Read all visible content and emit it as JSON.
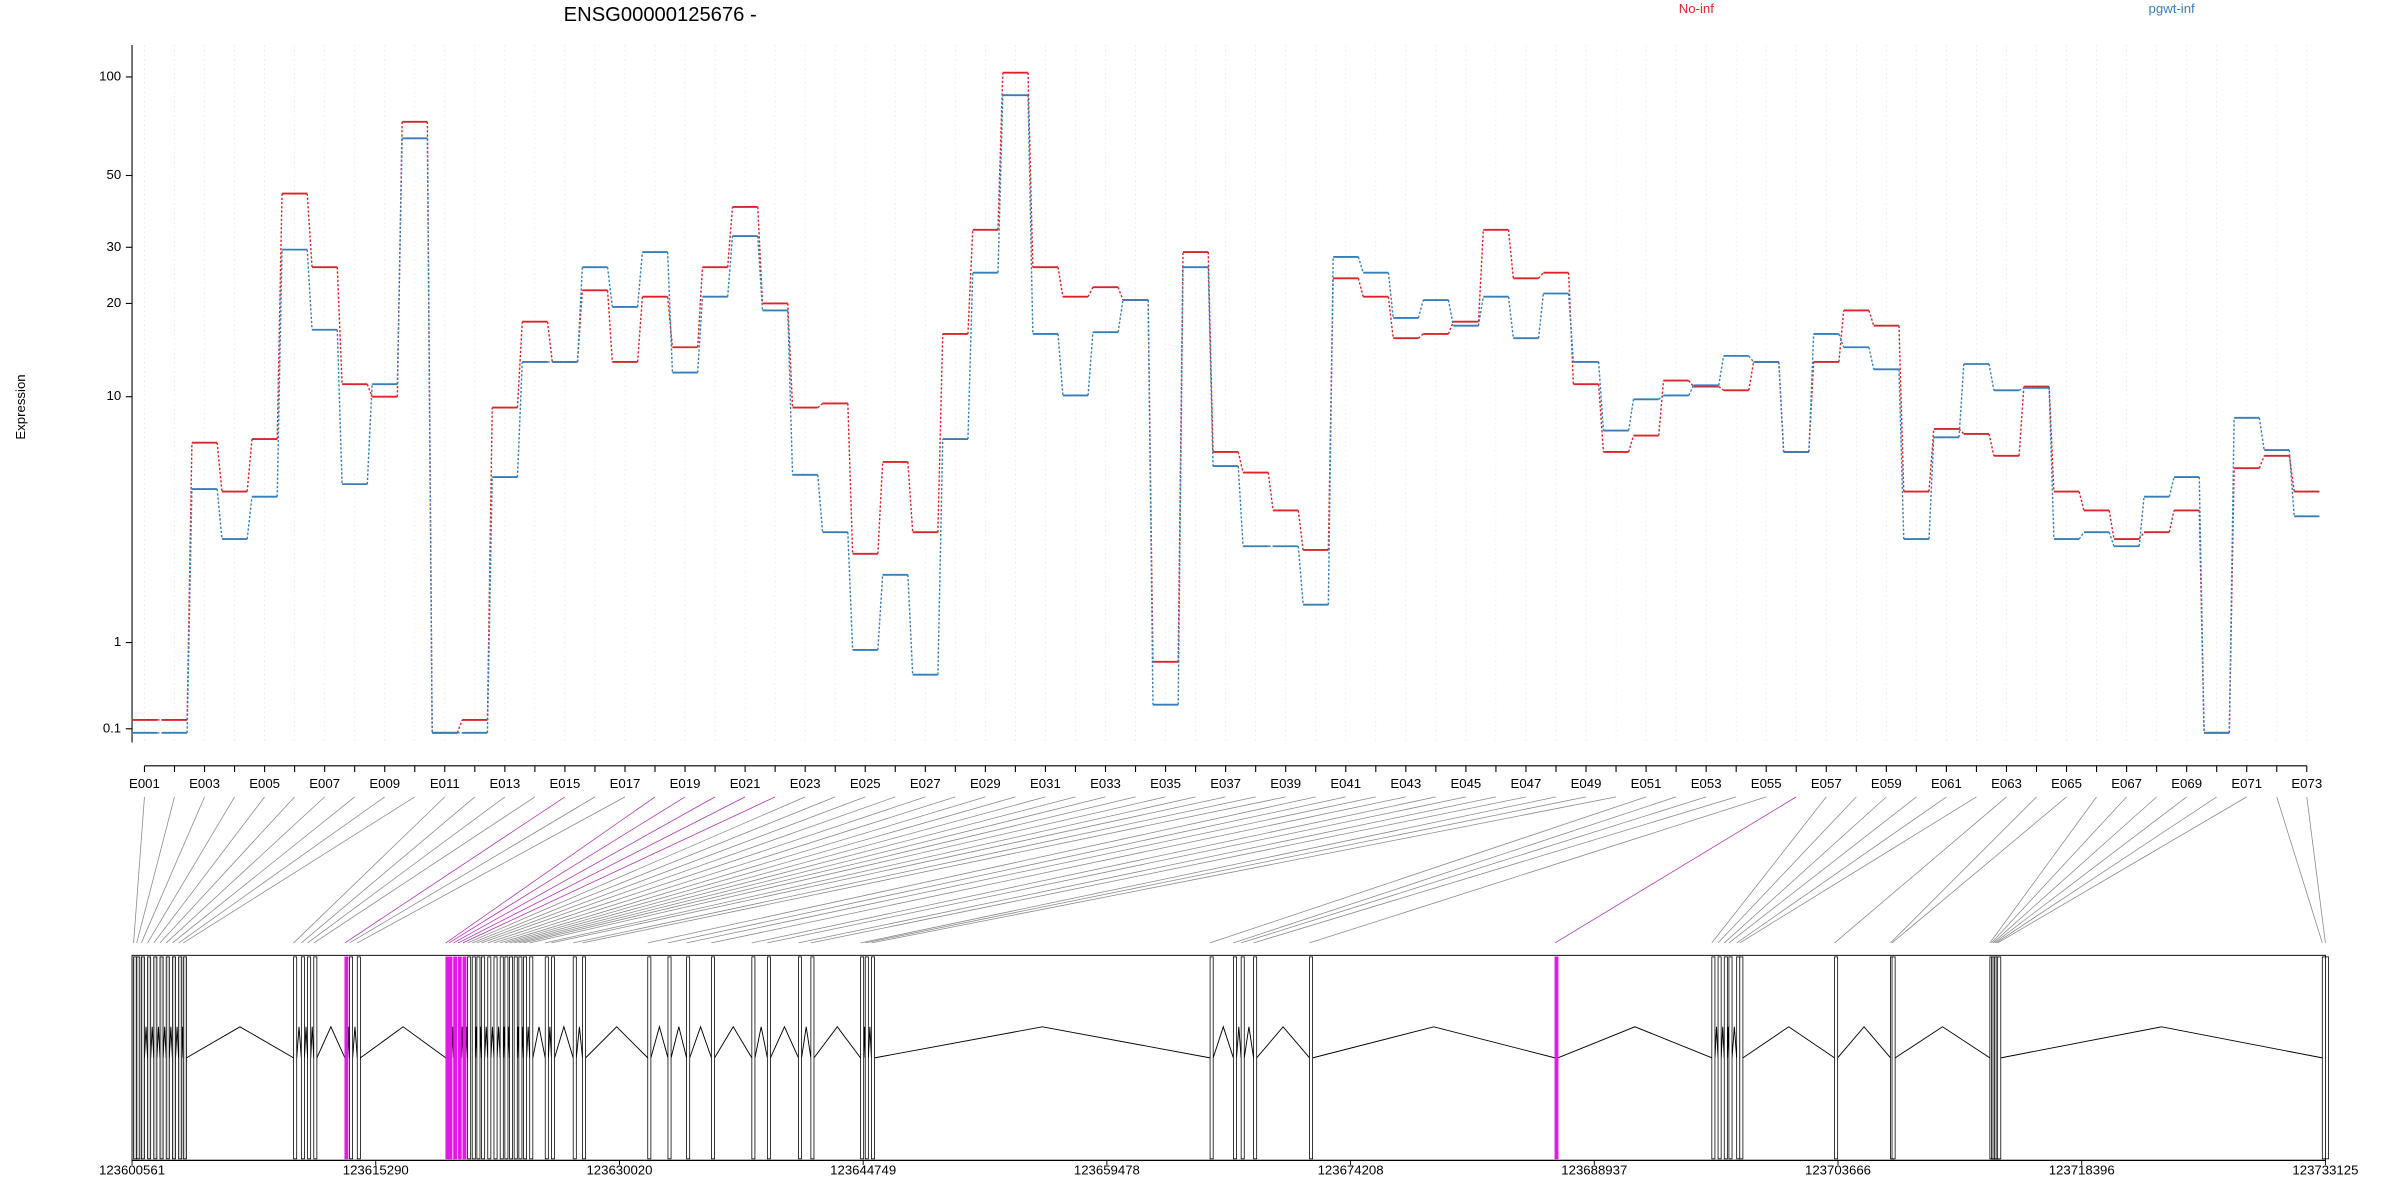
{
  "chart_data": [
    {
      "type": "line",
      "title": "ENSG00000125676 -",
      "ylabel": "Expression",
      "categories": [
        "E001",
        null,
        "E003",
        null,
        "E005",
        null,
        "E007",
        null,
        "E009",
        null,
        "E011",
        null,
        "E013",
        null,
        "E015",
        null,
        "E017",
        null,
        "E019",
        null,
        "E021",
        null,
        "E023",
        null,
        "E025",
        null,
        "E027",
        null,
        "E029",
        null,
        "E031",
        null,
        "E033",
        null,
        "E035",
        null,
        "E037",
        null,
        "E039",
        null,
        "E041",
        null,
        "E043",
        null,
        "E045",
        null,
        "E047",
        null,
        "E049",
        null,
        "E051",
        null,
        "E053",
        null,
        "E055",
        null,
        "E057",
        null,
        "E059",
        null,
        "E061",
        null,
        "E063",
        null,
        "E065",
        null,
        "E067",
        null,
        "E069",
        null,
        "E071",
        null,
        "E073"
      ],
      "series": [
        {
          "name": "No-inf",
          "color": "#d7262b",
          "values": [
            0.17,
            0.17,
            7,
            4.7,
            7.2,
            44,
            26,
            11,
            10,
            73,
            0.07,
            0.17,
            9.2,
            17.5,
            13,
            22,
            13,
            21,
            14.5,
            26,
            40,
            20,
            9.2,
            9.5,
            2.7,
            6,
            3.3,
            16,
            34,
            103,
            26,
            21,
            22.5,
            20.5,
            0.75,
            29,
            6.5,
            5.5,
            4,
            2.8,
            24,
            21,
            15.5,
            16,
            17.5,
            34,
            24,
            25,
            11,
            6.5,
            7.4,
            11.3,
            10.8,
            10.5,
            13,
            6.5,
            13,
            19,
            17,
            4.7,
            7.8,
            7.5,
            6.3,
            10.8,
            4.7,
            4,
            3.1,
            3.3,
            4,
            0.07,
            5.7,
            6.3,
            4.7
          ]
        },
        {
          "name": "pgwt-inf",
          "color": "#377eb8",
          "values": [
            0.07,
            0.07,
            4.8,
            3.1,
            4.5,
            29.5,
            16.5,
            5,
            11,
            65,
            0.07,
            0.07,
            5.3,
            13,
            13,
            26,
            19.5,
            29,
            12,
            21,
            32.5,
            19,
            5.4,
            3.3,
            0.9,
            2.2,
            0.6,
            7.2,
            25,
            88,
            16,
            10.1,
            16.2,
            20.5,
            0.3,
            26,
            5.8,
            2.9,
            2.9,
            1.6,
            28,
            25,
            18,
            20.5,
            17,
            21,
            15.5,
            21.5,
            13,
            7.7,
            9.8,
            10.1,
            10.9,
            13.6,
            13,
            6.5,
            16,
            14.5,
            12.3,
            3.1,
            7.3,
            12.8,
            10.5,
            10.7,
            3.1,
            3.3,
            2.9,
            4.5,
            5.3,
            0.07,
            8.5,
            6.6,
            3.8
          ]
        }
      ],
      "yscale": "log1p",
      "ylim": [
        0,
        125
      ],
      "yticks": [
        0.1,
        1,
        10,
        20,
        30,
        50,
        100
      ],
      "grid": true
    },
    {
      "type": "gene_model",
      "exon_positions": [
        123600655,
        123600843,
        123601124,
        123601500,
        123601875,
        123602251,
        123602626,
        123603002,
        123603377,
        123603659,
        123610325,
        123610794,
        123611170,
        123611545,
        123613423,
        123613705,
        123614174,
        123619525,
        123619713,
        123619995,
        123620276,
        123620558,
        123620840,
        123621121,
        123621403,
        123621685,
        123622060,
        123622436,
        123622811,
        123623093,
        123623375,
        123623656,
        123623938,
        123624220,
        123624595,
        123625534,
        123625909,
        123627224,
        123627787,
        123631730,
        123632951,
        123634077,
        123635579,
        123638020,
        123638959,
        123640837,
        123641588,
        123644592,
        123644874,
        123645249,
        123665716,
        123667124,
        123667593,
        123668345,
        123671724,
        123686558,
        123696040,
        123696416,
        123696791,
        123697073,
        123697542,
        123697730,
        123703457,
        123706837,
        123706931,
        123712845,
        123712939,
        123713033,
        123713127,
        123713221,
        123713315,
        123732936,
        123733124
      ],
      "exon_colors": [
        "#d3d3d3",
        "#d3d3d3",
        "#d3d3d3",
        "#d3d3d3",
        "#d3d3d3",
        "#d3d3d3",
        "#d3d3d3",
        "#d3d3d3",
        "#d3d3d3",
        "#d3d3d3",
        "#ffffff",
        "#ffffff",
        "#ffffff",
        "#ffffff",
        "#e31ae3",
        "#ffffff",
        "#ffffff",
        "#e31ae3",
        "#e31ae3",
        "#e31ae3",
        "#e31ae3",
        "#e31ae3",
        "#ffffff",
        "#ffffff",
        "#ffffff",
        "#ffffff",
        "#ffffff",
        "#ffffff",
        "#ffffff",
        "#ffffff",
        "#ffffff",
        "#ffffff",
        "#ffffff",
        "#ffffff",
        "#ffffff",
        "#ffffff",
        "#ffffff",
        "#ffffff",
        "#ffffff",
        "#ffffff",
        "#ffffff",
        "#ffffff",
        "#ffffff",
        "#ffffff",
        "#ffffff",
        "#ffffff",
        "#ffffff",
        "#ffffff",
        "#ffffff",
        "#ffffff",
        "#ffffff",
        "#ffffff",
        "#ffffff",
        "#ffffff",
        "#ffffff",
        "#e31ae3",
        "#ffffff",
        "#ffffff",
        "#ffffff",
        "#ffffff",
        "#ffffff",
        "#ffffff",
        "#ffffff",
        "#ffffff",
        "#ffffff",
        "#ffffff",
        "#ffffff",
        "#ffffff",
        "#ffffff",
        "#ffffff",
        "#ffffff",
        "#ffffff",
        "#ffffff"
      ],
      "xlim": [
        123600561,
        123733125
      ],
      "xticks": [
        123600561,
        123615290,
        123630020,
        123644749,
        123659478,
        123674208,
        123688937,
        123703666,
        123718396,
        123733125
      ]
    }
  ]
}
